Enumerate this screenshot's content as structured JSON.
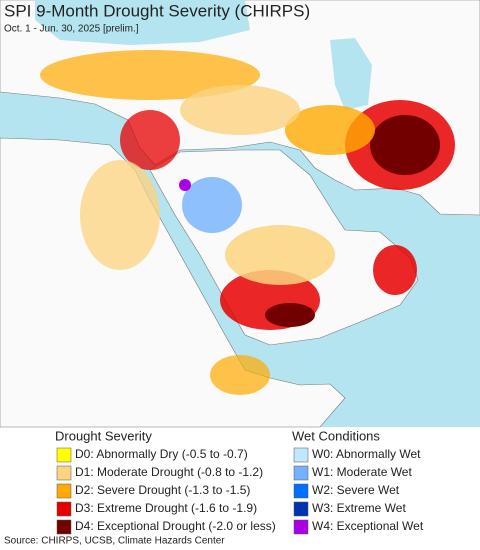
{
  "header": {
    "title": "SPI 9-Month Drought Severity (CHIRPS)",
    "subtitle": "Oct. 1 - Jun. 30, 2025 [prelim.]"
  },
  "legend": {
    "drought": {
      "title": "Drought Severity",
      "items": [
        {
          "label": "D0: Abnormally Dry (-0.5 to -0.7)",
          "color": "#ffff00"
        },
        {
          "label": "D1: Moderate Drought (-0.8 to -1.2)",
          "color": "#fcd37f"
        },
        {
          "label": "D2: Severe Drought (-1.3 to -1.5)",
          "color": "#ffaa00"
        },
        {
          "label": "D3: Extreme Drought (-1.6 to -1.9)",
          "color": "#e60000"
        },
        {
          "label": "D4: Exceptional Drought (-2.0 or less)",
          "color": "#730000"
        }
      ]
    },
    "wet": {
      "title": "Wet Conditions",
      "items": [
        {
          "label": "W0: Abnormally Wet",
          "color": "#bee8ff"
        },
        {
          "label": "W1: Moderate Wet",
          "color": "#73b2ff"
        },
        {
          "label": "W2: Severe Wet",
          "color": "#0070ff"
        },
        {
          "label": "W3: Extreme Wet",
          "color": "#0032b4"
        },
        {
          "label": "W4: Exceptional Wet",
          "color": "#a900e6"
        }
      ]
    }
  },
  "footer": {
    "source": "Source: CHIRPS, UCSB, Climate Hazards Center"
  }
}
